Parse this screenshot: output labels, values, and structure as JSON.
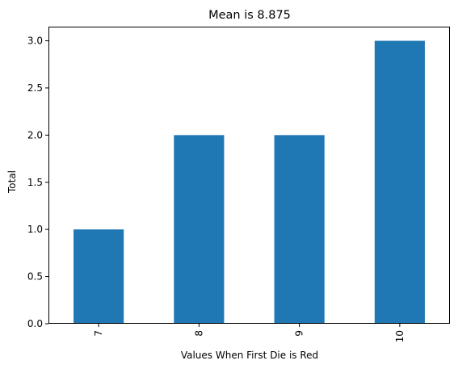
{
  "chart_data": {
    "type": "bar",
    "title": "Mean is 8.875",
    "xlabel": "Values When First Die is Red",
    "ylabel": "Total",
    "categories": [
      "7",
      "8",
      "9",
      "10"
    ],
    "values": [
      1,
      2,
      2,
      3
    ],
    "ylim": [
      0,
      3.15
    ],
    "yticks": [
      0.0,
      0.5,
      1.0,
      1.5,
      2.0,
      2.5,
      3.0
    ],
    "ytick_labels": [
      "0.0",
      "0.5",
      "1.0",
      "1.5",
      "2.0",
      "2.5",
      "3.0"
    ],
    "xtick_rotation": "vertical",
    "grid": false,
    "legend": "none",
    "bar_color": "#1f77b4"
  }
}
